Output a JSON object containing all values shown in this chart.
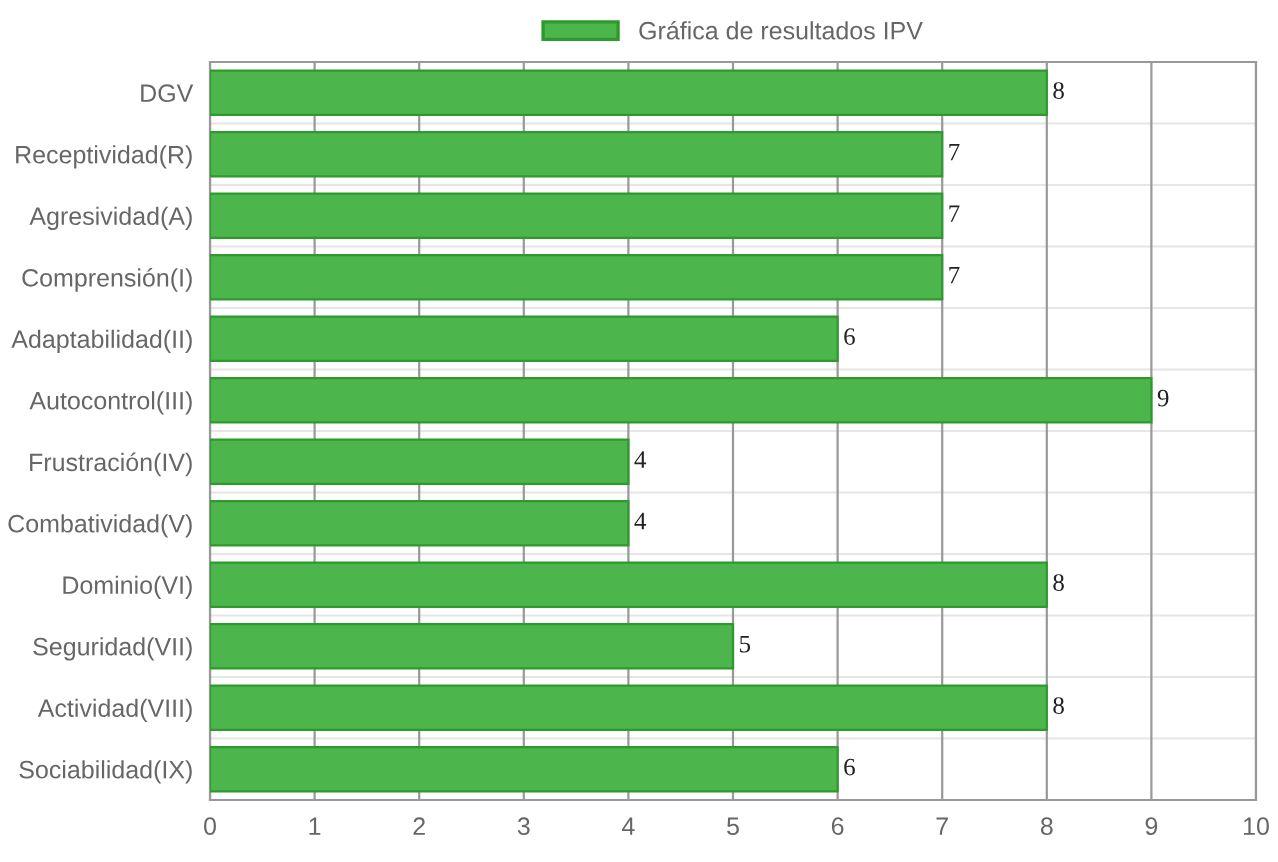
{
  "chart_data": {
    "type": "bar",
    "orientation": "horizontal",
    "categories": [
      "DGV",
      "Receptividad(R)",
      "Agresividad(A)",
      "Comprensión(I)",
      "Adaptabilidad(II)",
      "Autocontrol(III)",
      "Frustración(IV)",
      "Combatividad(V)",
      "Dominio(VI)",
      "Seguridad(VII)",
      "Actividad(VIII)",
      "Sociabilidad(IX)"
    ],
    "series": [
      {
        "name": "Gráfica de resultados IPV",
        "color": "#4cb64c",
        "values": [
          8,
          7,
          7,
          7,
          6,
          9,
          4,
          4,
          8,
          5,
          8,
          6
        ]
      }
    ],
    "xlim": [
      0,
      10
    ],
    "xticks": [
      0,
      1,
      2,
      3,
      4,
      5,
      6,
      7,
      8,
      9,
      10
    ],
    "grid": true,
    "legend": "top",
    "data_labels": true
  }
}
